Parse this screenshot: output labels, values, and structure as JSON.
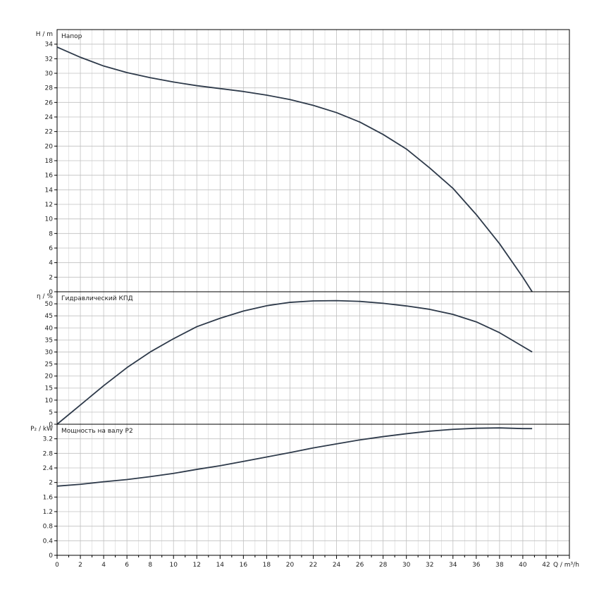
{
  "colors": {
    "background": "#ffffff",
    "grid": "#c0c0c0",
    "curve": "#2e3a4a",
    "frame": "#000000"
  },
  "chart_data": [
    {
      "type": "line",
      "title": "Напор",
      "ylabel": "H / m",
      "xlabel": "Q / m³/h",
      "xlim": [
        0,
        44
      ],
      "ylim": [
        0,
        36
      ],
      "x_ticks": [
        0,
        2,
        4,
        6,
        8,
        10,
        12,
        14,
        16,
        18,
        20,
        22,
        24,
        26,
        28,
        30,
        32,
        34,
        36,
        38,
        40,
        42
      ],
      "y_ticks": [
        0,
        2,
        4,
        6,
        8,
        10,
        12,
        14,
        16,
        18,
        20,
        22,
        24,
        26,
        28,
        30,
        32,
        34
      ],
      "grid": true,
      "series": [
        {
          "x": [
            0,
            2,
            4,
            6,
            8,
            10,
            12,
            14,
            16,
            18,
            20,
            22,
            24,
            26,
            28,
            30,
            32,
            34,
            36,
            38,
            40,
            40.8
          ],
          "values": [
            33.6,
            32.2,
            31.0,
            30.1,
            29.4,
            28.8,
            28.3,
            27.9,
            27.5,
            27.0,
            26.4,
            25.6,
            24.6,
            23.3,
            21.6,
            19.6,
            17.0,
            14.2,
            10.6,
            6.6,
            2.0,
            0
          ]
        }
      ]
    },
    {
      "type": "line",
      "title": "Гидравлический КПД",
      "ylabel": "η / %",
      "xlim": [
        0,
        44
      ],
      "ylim": [
        0,
        55
      ],
      "y_ticks": [
        0,
        5,
        10,
        15,
        20,
        25,
        30,
        35,
        40,
        45,
        50
      ],
      "grid": true,
      "series": [
        {
          "x": [
            0,
            2,
            4,
            6,
            8,
            10,
            12,
            14,
            16,
            18,
            20,
            22,
            24,
            26,
            28,
            30,
            32,
            34,
            36,
            38,
            40,
            40.8
          ],
          "values": [
            0,
            8,
            16,
            23.5,
            30,
            35.5,
            40.5,
            44,
            47,
            49.2,
            50.6,
            51.2,
            51.3,
            51.0,
            50.2,
            49.1,
            47.7,
            45.6,
            42.5,
            38.0,
            32.3,
            30.0
          ]
        }
      ]
    },
    {
      "type": "line",
      "title": "Мощность на валу P2",
      "ylabel": "P₂ / kW",
      "xlim": [
        0,
        44
      ],
      "ylim": [
        0,
        3.6
      ],
      "y_ticks": [
        0,
        0.4,
        0.8,
        1.2,
        1.6,
        2,
        2.4,
        2.8,
        3.2
      ],
      "grid": true,
      "series": [
        {
          "x": [
            0,
            2,
            4,
            6,
            8,
            10,
            12,
            14,
            16,
            18,
            20,
            22,
            24,
            26,
            28,
            30,
            32,
            34,
            36,
            38,
            40,
            40.8
          ],
          "values": [
            1.9,
            1.95,
            2.02,
            2.08,
            2.16,
            2.25,
            2.36,
            2.46,
            2.58,
            2.7,
            2.82,
            2.95,
            3.06,
            3.17,
            3.26,
            3.34,
            3.41,
            3.46,
            3.49,
            3.5,
            3.48,
            3.48
          ]
        }
      ]
    }
  ]
}
